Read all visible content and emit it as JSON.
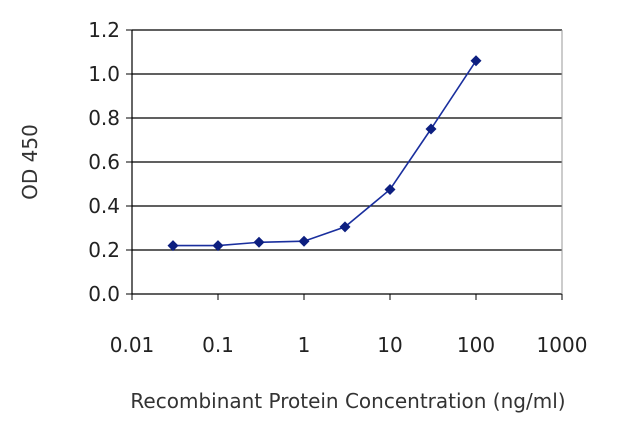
{
  "chart_data": {
    "type": "line",
    "xscale": "log",
    "xlabel": "Recombinant Protein Concentration (ng/ml)",
    "ylabel": "OD 450",
    "xlim": [
      0.01,
      1000
    ],
    "ylim": [
      0.0,
      1.2
    ],
    "x_ticks": [
      "0.01",
      "0.1",
      "1",
      "10",
      "100",
      "1000"
    ],
    "y_ticks": [
      "0.0",
      "0.2",
      "0.4",
      "0.6",
      "0.8",
      "1.0",
      "1.2"
    ],
    "grid": "horizontal",
    "series": [
      {
        "x": [
          0.03,
          0.1,
          0.3,
          1,
          3,
          10,
          30,
          100
        ],
        "y": [
          0.22,
          0.22,
          0.235,
          0.24,
          0.305,
          0.475,
          0.75,
          1.06
        ]
      }
    ],
    "colors": {
      "series": "#1a2f9e",
      "marker": "#0d1f80",
      "grid": "#000000"
    }
  }
}
